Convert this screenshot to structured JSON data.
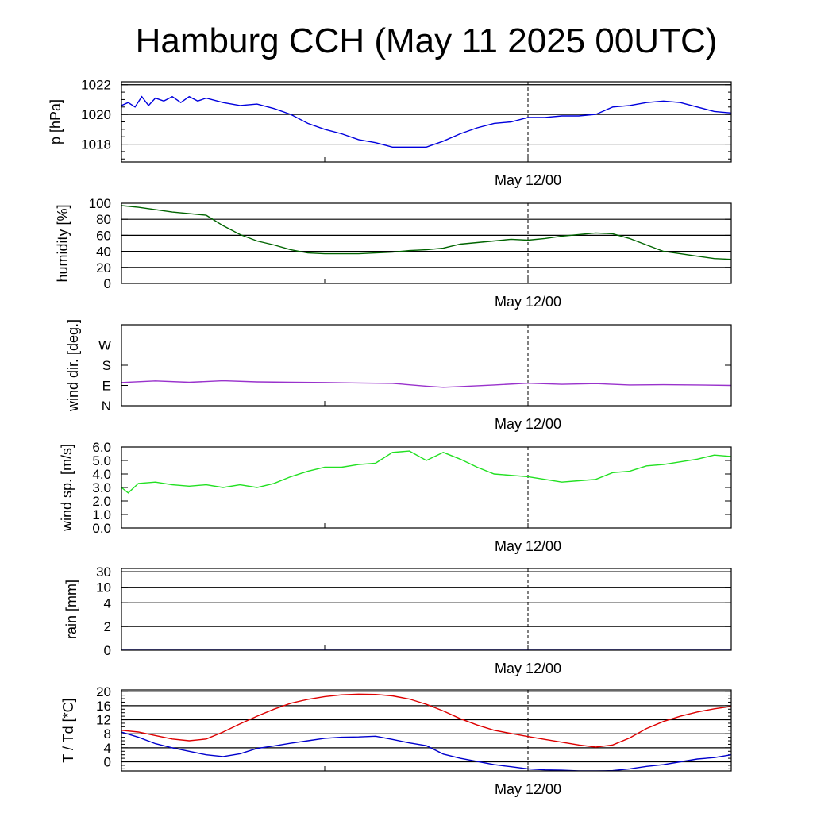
{
  "title": "Hamburg CCH (May 11 2025 00UTC)",
  "x_marker_label": "May 12/00",
  "x_range_hours": [
    0,
    36
  ],
  "x_marker_hour": 24,
  "x_minor_tick_hour": 12,
  "chart_data": [
    {
      "type": "line",
      "id": "pressure",
      "ylabel": "p [hPa]",
      "ylim": [
        1016.8,
        1022.2
      ],
      "yticks": [
        1018,
        1020,
        1022
      ],
      "ytick_labels": [
        "1018",
        "1020",
        "1022"
      ],
      "grid": true,
      "series": [
        {
          "color": "#0000dd",
          "x": [
            0,
            0.4,
            0.8,
            1.2,
            1.6,
            2.0,
            2.5,
            3.0,
            3.5,
            4.0,
            4.5,
            5.0,
            6.0,
            7.0,
            8.0,
            9.0,
            10.0,
            11.0,
            12.0,
            13.0,
            14.0,
            15.0,
            16.0,
            17.0,
            18.0,
            19.0,
            20.0,
            21.0,
            22.0,
            23.0,
            24.0,
            25.0,
            26.0,
            27.0,
            28.0,
            29.0,
            30.0,
            31.0,
            32.0,
            33.0,
            34.0,
            35.0,
            36.0
          ],
          "y": [
            1020.6,
            1020.8,
            1020.5,
            1021.2,
            1020.6,
            1021.1,
            1020.9,
            1021.2,
            1020.8,
            1021.2,
            1020.9,
            1021.1,
            1020.8,
            1020.6,
            1020.7,
            1020.4,
            1020.0,
            1019.4,
            1019.0,
            1018.7,
            1018.3,
            1018.1,
            1017.8,
            1017.8,
            1017.8,
            1018.2,
            1018.7,
            1019.1,
            1019.4,
            1019.5,
            1019.8,
            1019.8,
            1019.9,
            1019.9,
            1020.0,
            1020.5,
            1020.6,
            1020.8,
            1020.9,
            1020.8,
            1020.5,
            1020.2,
            1020.1
          ]
        }
      ]
    },
    {
      "type": "line",
      "id": "humidity",
      "ylabel": "humidity [%]",
      "ylim": [
        0,
        100
      ],
      "yticks": [
        0,
        20,
        40,
        60,
        80,
        100
      ],
      "ytick_labels": [
        "0",
        "20",
        "40",
        "60",
        "80",
        "100"
      ],
      "grid": true,
      "series": [
        {
          "color": "#006400",
          "x": [
            0,
            1,
            2,
            3,
            4,
            5,
            6,
            7,
            8,
            9,
            10,
            11,
            12,
            13,
            14,
            15,
            16,
            17,
            18,
            19,
            20,
            21,
            22,
            23,
            24,
            25,
            26,
            27,
            28,
            29,
            30,
            31,
            32,
            33,
            34,
            35,
            36
          ],
          "y": [
            97,
            95,
            92,
            89,
            87,
            85,
            72,
            61,
            53,
            48,
            42,
            38,
            37,
            37,
            37,
            38,
            39,
            41,
            42,
            44,
            49,
            51,
            53,
            55,
            54,
            56,
            59,
            61,
            63,
            62,
            56,
            48,
            40,
            37,
            34,
            31,
            30
          ]
        }
      ]
    },
    {
      "type": "line",
      "id": "wind-direction",
      "ylabel": "wind dir. [deg.]",
      "ylim": [
        0,
        360
      ],
      "yticks": [
        0,
        90,
        180,
        270
      ],
      "ytick_labels": [
        "N",
        "E",
        "S",
        "W"
      ],
      "grid": false,
      "series": [
        {
          "color": "#9932cc",
          "x": [
            0,
            2,
            4,
            6,
            8,
            10,
            12,
            14,
            16,
            18,
            19,
            20,
            22,
            24,
            26,
            28,
            30,
            32,
            34,
            36
          ],
          "y": [
            103,
            110,
            104,
            111,
            106,
            104,
            103,
            101,
            99,
            87,
            82,
            85,
            92,
            100,
            95,
            98,
            92,
            93,
            92,
            90
          ]
        }
      ]
    },
    {
      "type": "line",
      "id": "wind-speed",
      "ylabel": "wind sp. [m/s]",
      "ylim": [
        0,
        6.0
      ],
      "yticks": [
        0,
        1,
        2,
        3,
        4,
        5,
        6
      ],
      "ytick_labels": [
        "0.0",
        "1.0",
        "2.0",
        "3.0",
        "4.0",
        "5.0",
        "6.0"
      ],
      "grid": false,
      "series": [
        {
          "color": "#22e022",
          "x": [
            0,
            0.4,
            1,
            2,
            3,
            4,
            5,
            6,
            7,
            8,
            9,
            10,
            11,
            12,
            13,
            14,
            15,
            16,
            17,
            18,
            19,
            20,
            21,
            22,
            23,
            24,
            25,
            26,
            27,
            28,
            29,
            30,
            31,
            32,
            33,
            34,
            35,
            36
          ],
          "y": [
            3.0,
            2.6,
            3.3,
            3.4,
            3.2,
            3.1,
            3.2,
            3.0,
            3.2,
            3.0,
            3.3,
            3.8,
            4.2,
            4.5,
            4.5,
            4.7,
            4.8,
            5.6,
            5.7,
            5.0,
            5.6,
            5.1,
            4.5,
            4.0,
            3.9,
            3.8,
            3.6,
            3.4,
            3.5,
            3.6,
            4.1,
            4.2,
            4.6,
            4.7,
            4.9,
            5.1,
            5.4,
            5.3
          ]
        }
      ]
    },
    {
      "type": "line",
      "id": "rain",
      "ylabel": "rain [mm]",
      "ylim": [
        0,
        30
      ],
      "yticks": [
        0,
        2,
        4,
        10,
        30
      ],
      "ytick_labels": [
        "0",
        "2",
        "4",
        "10",
        "30"
      ],
      "grid": true,
      "series": [
        {
          "color": "#0000cc",
          "x": [
            0,
            36
          ],
          "y": [
            0,
            0
          ]
        }
      ]
    },
    {
      "type": "line",
      "id": "temperature",
      "ylabel": "T / Td [*C]",
      "ylim": [
        -2.6,
        20.5
      ],
      "yticks": [
        0,
        4,
        8,
        12,
        16,
        20
      ],
      "ytick_labels": [
        "0",
        "4",
        "8",
        "12",
        "16",
        "20"
      ],
      "grid": true,
      "series": [
        {
          "color": "#dd0000",
          "x": [
            0,
            1,
            2,
            3,
            4,
            5,
            6,
            7,
            8,
            9,
            10,
            11,
            12,
            13,
            14,
            15,
            16,
            17,
            18,
            19,
            20,
            21,
            22,
            23,
            24,
            25,
            26,
            27,
            28,
            29,
            30,
            31,
            32,
            33,
            34,
            35,
            36
          ],
          "y": [
            9.0,
            8.5,
            7.5,
            6.5,
            6.0,
            6.5,
            8.5,
            10.8,
            13.0,
            15.0,
            16.7,
            17.8,
            18.6,
            19.1,
            19.3,
            19.2,
            18.8,
            17.9,
            16.4,
            14.5,
            12.3,
            10.5,
            9.0,
            8.1,
            7.2,
            6.4,
            5.6,
            4.8,
            4.2,
            4.8,
            6.8,
            9.5,
            11.5,
            13.0,
            14.2,
            15.1,
            15.8
          ]
        },
        {
          "color": "#0000cc",
          "x": [
            0,
            1,
            2,
            3,
            4,
            5,
            6,
            7,
            8,
            9,
            10,
            11,
            12,
            13,
            14,
            15,
            16,
            17,
            18,
            19,
            20,
            21,
            22,
            23,
            24,
            25,
            26,
            27,
            28,
            29,
            30,
            31,
            32,
            33,
            34,
            35,
            36
          ],
          "y": [
            8.5,
            7.0,
            5.2,
            4.0,
            3.0,
            2.0,
            1.5,
            2.3,
            3.8,
            4.5,
            5.3,
            6.0,
            6.7,
            7.0,
            7.1,
            7.3,
            6.4,
            5.4,
            4.6,
            2.2,
            1.0,
            0.1,
            -0.8,
            -1.4,
            -2.0,
            -2.3,
            -2.4,
            -2.6,
            -2.6,
            -2.5,
            -2.0,
            -1.3,
            -0.8,
            0.0,
            0.8,
            1.2,
            2.0
          ]
        }
      ]
    }
  ]
}
